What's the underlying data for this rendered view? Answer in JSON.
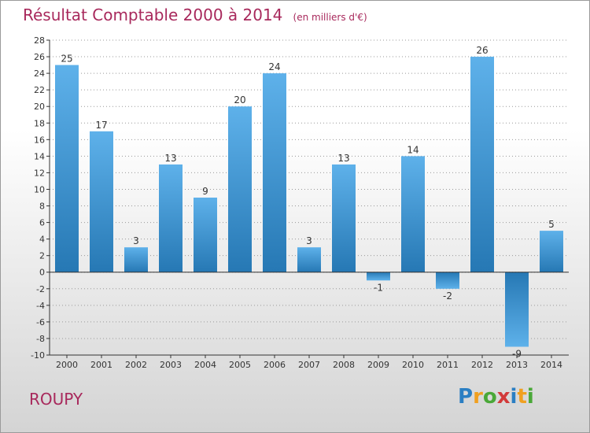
{
  "chart_data": {
    "type": "bar",
    "title": "Résultat Comptable 2000 à 2014",
    "subtitle": "(en milliers d'€)",
    "categories": [
      "2000",
      "2001",
      "2002",
      "2003",
      "2004",
      "2005",
      "2006",
      "2007",
      "2008",
      "2009",
      "2010",
      "2011",
      "2012",
      "2013",
      "2014"
    ],
    "values": [
      25,
      17,
      3,
      13,
      9,
      20,
      24,
      3,
      13,
      -1,
      14,
      -2,
      26,
      -9,
      5
    ],
    "xlabel": "",
    "ylabel": "",
    "ylim": [
      -10,
      28
    ],
    "yticks": [
      -10,
      -8,
      -6,
      -4,
      -2,
      0,
      2,
      4,
      6,
      8,
      10,
      12,
      14,
      16,
      18,
      20,
      22,
      24,
      26,
      28
    ],
    "grid": true,
    "colors": {
      "bar_light": "#5eb1ea",
      "bar_dark": "#2678b4",
      "axis": "#333333",
      "grid": "#999999"
    }
  },
  "commune": "ROUPY",
  "logo": {
    "letters": [
      "P",
      "r",
      "o",
      "x",
      "i",
      "t",
      "i"
    ],
    "colors": [
      "#2b7fc3",
      "#f0a020",
      "#4aa838",
      "#d23a3a",
      "#2b7fc3",
      "#f0a020",
      "#4aa838"
    ]
  }
}
